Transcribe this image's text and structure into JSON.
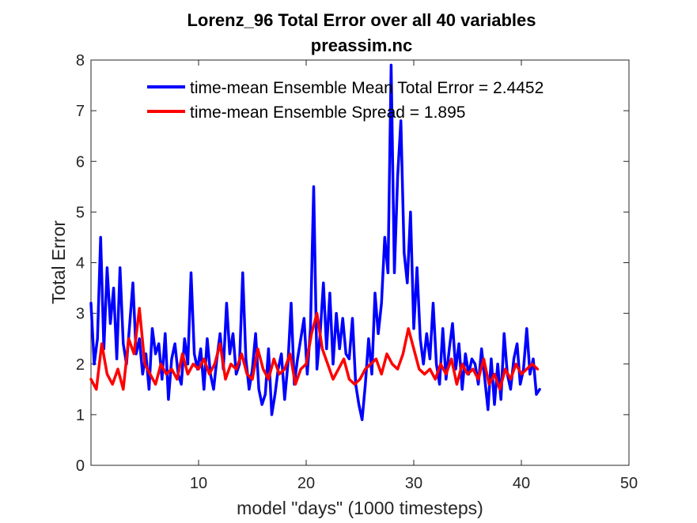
{
  "chart_data": {
    "type": "line",
    "title": "Lorenz_96 Total Error over all 40 variables",
    "subtitle": "preassim.nc",
    "xlabel": "model \"days\" (1000 timesteps)",
    "ylabel": "Total Error",
    "xlim": [
      0,
      50
    ],
    "ylim": [
      0,
      8
    ],
    "xticks": [
      10,
      20,
      30,
      40,
      50
    ],
    "yticks": [
      0,
      1,
      2,
      3,
      4,
      5,
      6,
      7,
      8
    ],
    "grid": false,
    "legend_placement": "top-right",
    "series": [
      {
        "name": "time-mean Ensemble Mean Total Error = 2.4452",
        "color": "#0000ff",
        "x": [
          0.0,
          0.3,
          0.6,
          0.9,
          1.2,
          1.5,
          1.8,
          2.1,
          2.4,
          2.7,
          3.0,
          3.3,
          3.6,
          3.9,
          4.2,
          4.5,
          4.8,
          5.1,
          5.4,
          5.7,
          6.0,
          6.3,
          6.6,
          6.9,
          7.2,
          7.5,
          7.8,
          8.1,
          8.4,
          8.7,
          9.0,
          9.3,
          9.6,
          9.9,
          10.2,
          10.5,
          10.8,
          11.1,
          11.4,
          11.7,
          12.0,
          12.3,
          12.6,
          12.9,
          13.2,
          13.5,
          13.8,
          14.1,
          14.4,
          14.7,
          15.0,
          15.3,
          15.6,
          15.9,
          16.2,
          16.5,
          16.8,
          17.1,
          17.4,
          17.7,
          18.0,
          18.3,
          18.6,
          18.9,
          19.2,
          19.5,
          19.8,
          20.1,
          20.4,
          20.7,
          21.0,
          21.3,
          21.6,
          21.9,
          22.2,
          22.5,
          22.8,
          23.1,
          23.4,
          23.7,
          24.0,
          24.3,
          24.6,
          24.9,
          25.2,
          25.5,
          25.8,
          26.1,
          26.4,
          26.7,
          27.0,
          27.3,
          27.6,
          27.9,
          28.2,
          28.5,
          28.8,
          29.1,
          29.4,
          29.7,
          30.0,
          30.3,
          30.6,
          30.9,
          31.2,
          31.5,
          31.8,
          32.1,
          32.4,
          32.7,
          33.0,
          33.3,
          33.6,
          33.9,
          34.2,
          34.5,
          34.8,
          35.1,
          35.4,
          35.7,
          36.0,
          36.3,
          36.6,
          36.9,
          37.2,
          37.5,
          37.8,
          38.1,
          38.4,
          38.7,
          39.0,
          39.3,
          39.6,
          39.9,
          40.2,
          40.5,
          40.8,
          41.1,
          41.4,
          41.7
        ],
        "values": [
          3.2,
          2.0,
          2.5,
          4.5,
          2.3,
          3.9,
          2.8,
          3.5,
          2.1,
          3.9,
          2.4,
          2.0,
          2.8,
          3.6,
          2.2,
          2.5,
          1.8,
          2.2,
          1.5,
          2.7,
          2.2,
          2.4,
          1.7,
          2.6,
          1.3,
          2.1,
          2.4,
          1.8,
          1.6,
          2.5,
          2.0,
          3.8,
          2.2,
          1.9,
          2.3,
          1.5,
          2.5,
          1.8,
          1.5,
          2.1,
          2.6,
          1.9,
          3.2,
          2.2,
          2.6,
          1.8,
          2.0,
          3.8,
          2.1,
          1.5,
          1.9,
          2.6,
          1.5,
          1.2,
          1.4,
          2.3,
          1.0,
          1.4,
          1.9,
          2.2,
          1.3,
          2.0,
          3.2,
          1.6,
          2.1,
          2.5,
          2.9,
          1.8,
          2.7,
          5.5,
          1.9,
          2.6,
          3.6,
          2.3,
          3.4,
          2.0,
          3.0,
          2.3,
          2.9,
          2.2,
          2.1,
          2.9,
          1.6,
          1.2,
          0.9,
          1.6,
          2.5,
          1.8,
          3.4,
          2.6,
          3.2,
          4.5,
          3.8,
          7.9,
          3.8,
          5.7,
          6.8,
          4.2,
          3.6,
          5.0,
          2.7,
          3.9,
          2.5,
          2.0,
          2.6,
          2.1,
          3.2,
          2.0,
          1.6,
          2.7,
          1.7,
          2.3,
          2.8,
          1.9,
          2.4,
          1.5,
          2.2,
          1.8,
          2.1,
          2.0,
          1.6,
          2.3,
          1.7,
          1.1,
          2.1,
          1.2,
          2.0,
          1.3,
          2.6,
          1.8,
          1.5,
          2.1,
          2.4,
          1.6,
          1.9,
          2.7,
          1.8,
          2.1,
          1.4,
          1.5
        ]
      },
      {
        "name": "time-mean Ensemble Spread = 1.895",
        "color": "#ff0000",
        "x": [
          0.0,
          0.5,
          1.0,
          1.5,
          2.0,
          2.5,
          3.0,
          3.5,
          4.0,
          4.5,
          5.0,
          5.5,
          6.0,
          6.5,
          7.0,
          7.5,
          8.0,
          8.5,
          9.0,
          9.5,
          10.0,
          10.5,
          11.0,
          11.5,
          12.0,
          12.5,
          13.0,
          13.5,
          14.0,
          14.5,
          15.0,
          15.5,
          16.0,
          16.5,
          17.0,
          17.5,
          18.0,
          18.5,
          19.0,
          19.5,
          20.0,
          20.5,
          21.0,
          21.5,
          22.0,
          22.5,
          23.0,
          23.5,
          24.0,
          24.5,
          25.0,
          25.5,
          26.0,
          26.5,
          27.0,
          27.5,
          28.0,
          28.5,
          29.0,
          29.5,
          30.0,
          30.5,
          31.0,
          31.5,
          32.0,
          32.5,
          33.0,
          33.5,
          34.0,
          34.5,
          35.0,
          35.5,
          36.0,
          36.5,
          37.0,
          37.5,
          38.0,
          38.5,
          39.0,
          39.5,
          40.0,
          40.5,
          41.0,
          41.5
        ],
        "values": [
          1.7,
          1.5,
          2.4,
          1.8,
          1.6,
          1.9,
          1.5,
          2.5,
          2.2,
          3.1,
          2.0,
          1.8,
          1.6,
          2.0,
          1.8,
          1.9,
          1.7,
          2.2,
          1.8,
          2.0,
          1.9,
          2.1,
          1.8,
          2.0,
          2.4,
          1.7,
          2.0,
          1.9,
          2.2,
          1.8,
          1.7,
          2.3,
          1.9,
          1.7,
          2.1,
          1.8,
          1.9,
          2.2,
          1.6,
          1.9,
          2.0,
          2.6,
          3.0,
          2.3,
          2.0,
          1.7,
          1.9,
          2.1,
          1.7,
          1.6,
          1.7,
          1.9,
          2.0,
          2.1,
          1.8,
          2.2,
          2.0,
          1.9,
          2.2,
          2.7,
          2.3,
          1.9,
          1.8,
          1.9,
          1.7,
          2.0,
          1.8,
          2.1,
          1.6,
          2.0,
          1.8,
          1.9,
          1.7,
          2.1,
          1.6,
          1.8,
          1.5,
          1.9,
          1.7,
          2.0,
          1.8,
          1.9,
          2.0,
          1.9
        ]
      }
    ]
  }
}
